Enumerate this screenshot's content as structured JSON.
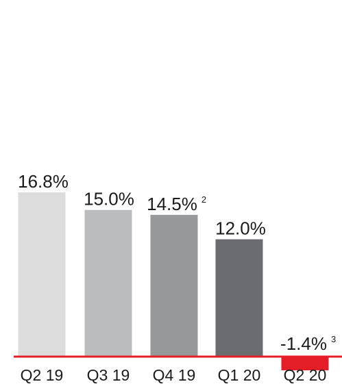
{
  "chart_data": {
    "type": "bar",
    "categories": [
      "Q2 19",
      "Q3 19",
      "Q4 19",
      "Q1 20",
      "Q2 20"
    ],
    "values": [
      16.8,
      15.0,
      14.5,
      12.0,
      -1.4
    ],
    "value_labels": [
      "16.8%",
      "15.0%",
      "14.5%",
      "12.0%",
      "-1.4%"
    ],
    "footnotes": [
      "",
      "",
      "2",
      "",
      "3"
    ],
    "bar_colors": [
      "#dcdcdd",
      "#bbbcbe",
      "#97989a",
      "#6b6c6f",
      "#e31e26"
    ],
    "baseline_color": "#e31e26",
    "title": "",
    "xlabel": "",
    "ylabel": "",
    "ylim": [
      -1.4,
      16.8
    ],
    "grid": false,
    "legend": "none"
  }
}
